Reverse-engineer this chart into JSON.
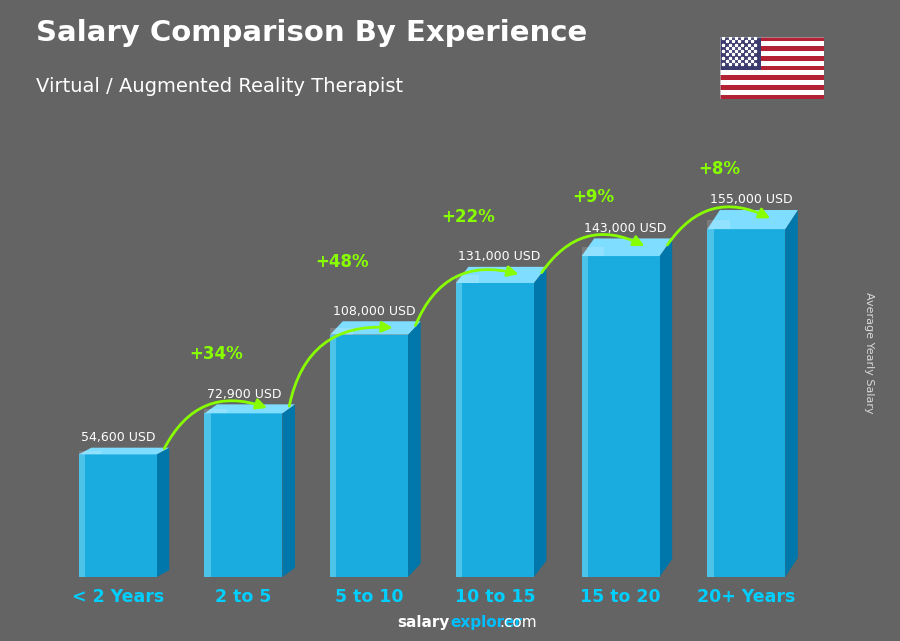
{
  "title_line1": "Salary Comparison By Experience",
  "title_line2": "Virtual / Augmented Reality Therapist",
  "categories": [
    "< 2 Years",
    "2 to 5",
    "5 to 10",
    "10 to 15",
    "15 to 20",
    "20+ Years"
  ],
  "values": [
    54600,
    72900,
    108000,
    131000,
    143000,
    155000
  ],
  "value_labels": [
    "54,600 USD",
    "72,900 USD",
    "108,000 USD",
    "131,000 USD",
    "143,000 USD",
    "155,000 USD"
  ],
  "pct_labels": [
    "+34%",
    "+48%",
    "+22%",
    "+9%",
    "+8%"
  ],
  "bar_color_face": "#1AACDE",
  "bar_color_dark": "#0077AA",
  "bar_color_top": "#7FDDFF",
  "bar_color_highlight": "#AAEEFF",
  "background_color": "#646464",
  "title_color": "#FFFFFF",
  "subtitle_color": "#FFFFFF",
  "xlabel_color": "#00CFFF",
  "value_label_color": "#FFFFFF",
  "pct_color": "#88FF00",
  "arrow_color": "#88FF00",
  "ylabel_text": "Average Yearly Salary",
  "footer_salary": "salary",
  "footer_explorer": "explorer",
  "footer_com": ".com",
  "ylim": [
    0,
    200000
  ]
}
